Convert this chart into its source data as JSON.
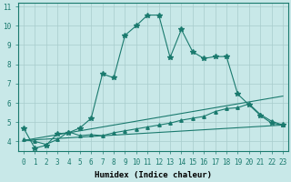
{
  "background_color": "#c8e8e8",
  "grid_color": "#a8cccc",
  "line_color": "#1a7a6e",
  "xlabel": "Humidex (Indice chaleur)",
  "xlim": [
    -0.5,
    23.5
  ],
  "ylim": [
    3.5,
    11.2
  ],
  "xticks": [
    0,
    1,
    2,
    3,
    4,
    5,
    6,
    7,
    8,
    9,
    10,
    11,
    12,
    13,
    14,
    15,
    16,
    17,
    18,
    19,
    20,
    21,
    22,
    23
  ],
  "yticks": [
    4,
    5,
    6,
    7,
    8,
    9,
    10,
    11
  ],
  "line1_x": [
    0,
    1,
    2,
    3,
    4,
    5,
    6,
    7,
    8,
    9,
    10,
    11,
    12,
    13,
    14,
    15,
    16,
    17,
    18,
    19,
    20,
    21,
    22,
    23
  ],
  "line1_y": [
    4.7,
    3.65,
    3.8,
    4.4,
    4.45,
    4.7,
    5.2,
    7.5,
    7.3,
    9.5,
    10.0,
    10.55,
    10.55,
    8.35,
    9.8,
    8.65,
    8.3,
    8.4,
    8.4,
    6.45,
    5.9,
    5.35,
    4.95,
    4.85
  ],
  "line2_x": [
    0,
    1,
    2,
    3,
    4,
    5,
    6,
    7,
    8,
    9,
    10,
    11,
    12,
    13,
    14,
    15,
    16,
    17,
    18,
    19,
    20,
    21,
    22,
    23
  ],
  "line2_y": [
    4.1,
    4.0,
    3.85,
    4.1,
    4.5,
    4.3,
    4.35,
    4.3,
    4.45,
    4.55,
    4.65,
    4.75,
    4.85,
    4.95,
    5.1,
    5.2,
    5.3,
    5.55,
    5.7,
    5.75,
    5.95,
    5.4,
    5.05,
    4.85
  ],
  "line3_x": [
    0,
    23
  ],
  "line3_y": [
    4.05,
    6.35
  ],
  "line4_x": [
    0,
    23
  ],
  "line4_y": [
    4.05,
    4.85
  ]
}
